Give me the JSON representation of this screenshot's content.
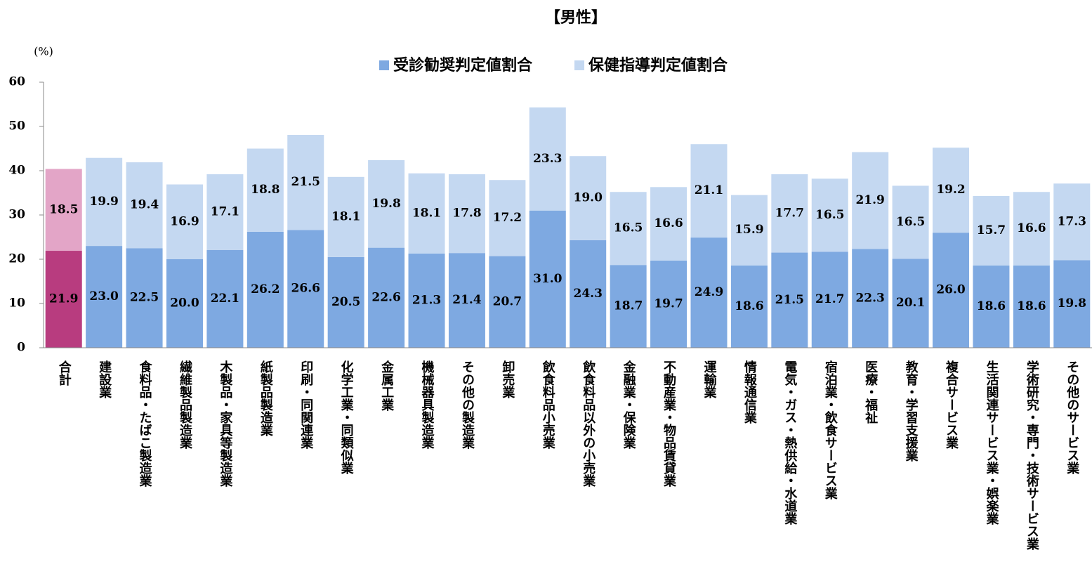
{
  "chart_data": {
    "type": "stacked_bar",
    "title": "【男性】",
    "y_label": "(%)",
    "categories": [
      "合計",
      "建設業",
      "食料品・たばこ製造業",
      "繊維製品製造業",
      "木製品・家具等製造業",
      "紙製品製造業",
      "印刷・同関連業",
      "化学工業・同類似業",
      "金属工業",
      "機械器具製造業",
      "その他の製造業",
      "卸売業",
      "飲食料品小売業",
      "飲食料品以外の小売業",
      "金融業・保険業",
      "不動産業・物品賃貸業",
      "運輸業",
      "情報通信業",
      "電気・ガス・熱供給・水道業",
      "宿泊業・飲食サービス業",
      "医療・福祉",
      "教育・学習支援業",
      "複合サービス業",
      "生活関連サービス業・娯楽業",
      "学術研究・専門・技術サービス業",
      "その他のサービス業"
    ],
    "series": [
      {
        "name": "受診勧奨判定値割合",
        "color": "#7ea9e1",
        "colors": [
          "#b83c7f",
          "#7ea9e1",
          "#7ea9e1",
          "#7ea9e1",
          "#7ea9e1",
          "#7ea9e1",
          "#7ea9e1",
          "#7ea9e1",
          "#7ea9e1",
          "#7ea9e1",
          "#7ea9e1",
          "#7ea9e1",
          "#7ea9e1",
          "#7ea9e1",
          "#7ea9e1",
          "#7ea9e1",
          "#7ea9e1",
          "#7ea9e1",
          "#7ea9e1",
          "#7ea9e1",
          "#7ea9e1",
          "#7ea9e1",
          "#7ea9e1",
          "#7ea9e1",
          "#7ea9e1",
          "#7ea9e1"
        ],
        "values": [
          21.9,
          23.0,
          22.5,
          20.0,
          22.1,
          26.2,
          26.6,
          20.5,
          22.6,
          21.3,
          21.4,
          20.7,
          31.0,
          24.3,
          18.7,
          19.7,
          24.9,
          18.6,
          21.5,
          21.7,
          22.3,
          20.1,
          26.0,
          18.6,
          18.6,
          19.8
        ],
        "value_labels": [
          "21.9",
          "23.0",
          "22.5",
          "20.0",
          "22.1",
          "26.2",
          "26.6",
          "20.5",
          "22.6",
          "21.3",
          "21.4",
          "20.7",
          "31.0",
          "24.3",
          "18.7",
          "19.7",
          "24.9",
          "18.6",
          "21.5",
          "21.7",
          "22.3",
          "20.1",
          "26.0",
          "18.6",
          "18.6",
          "19.8"
        ]
      },
      {
        "name": "保健指導判定値割合",
        "color": "#c4d8f1",
        "colors": [
          "#e3a5c7",
          "#c4d8f1",
          "#c4d8f1",
          "#c4d8f1",
          "#c4d8f1",
          "#c4d8f1",
          "#c4d8f1",
          "#c4d8f1",
          "#c4d8f1",
          "#c4d8f1",
          "#c4d8f1",
          "#c4d8f1",
          "#c4d8f1",
          "#c4d8f1",
          "#c4d8f1",
          "#c4d8f1",
          "#c4d8f1",
          "#c4d8f1",
          "#c4d8f1",
          "#c4d8f1",
          "#c4d8f1",
          "#c4d8f1",
          "#c4d8f1",
          "#c4d8f1",
          "#c4d8f1",
          "#c4d8f1"
        ],
        "values": [
          18.5,
          19.9,
          19.4,
          16.9,
          17.1,
          18.8,
          21.5,
          18.1,
          19.8,
          18.1,
          17.8,
          17.2,
          23.3,
          19.0,
          16.5,
          16.6,
          21.1,
          15.9,
          17.7,
          16.5,
          21.9,
          16.5,
          19.2,
          15.7,
          16.6,
          17.3
        ],
        "value_labels": [
          "18.5",
          "19.9",
          "19.4",
          "16.9",
          "17.1",
          "18.8",
          "21.5",
          "18.1",
          "19.8",
          "18.1",
          "17.8",
          "17.2",
          "23.3",
          "19.0",
          "16.5",
          "16.6",
          "21.1",
          "15.9",
          "17.7",
          "16.5",
          "21.9",
          "16.5",
          "19.2",
          "15.7",
          "16.6",
          "17.3"
        ]
      }
    ],
    "ylim": [
      0,
      60
    ],
    "yticks": [
      0,
      10,
      20,
      30,
      40,
      50,
      60
    ],
    "grid": false,
    "legend": "top"
  }
}
